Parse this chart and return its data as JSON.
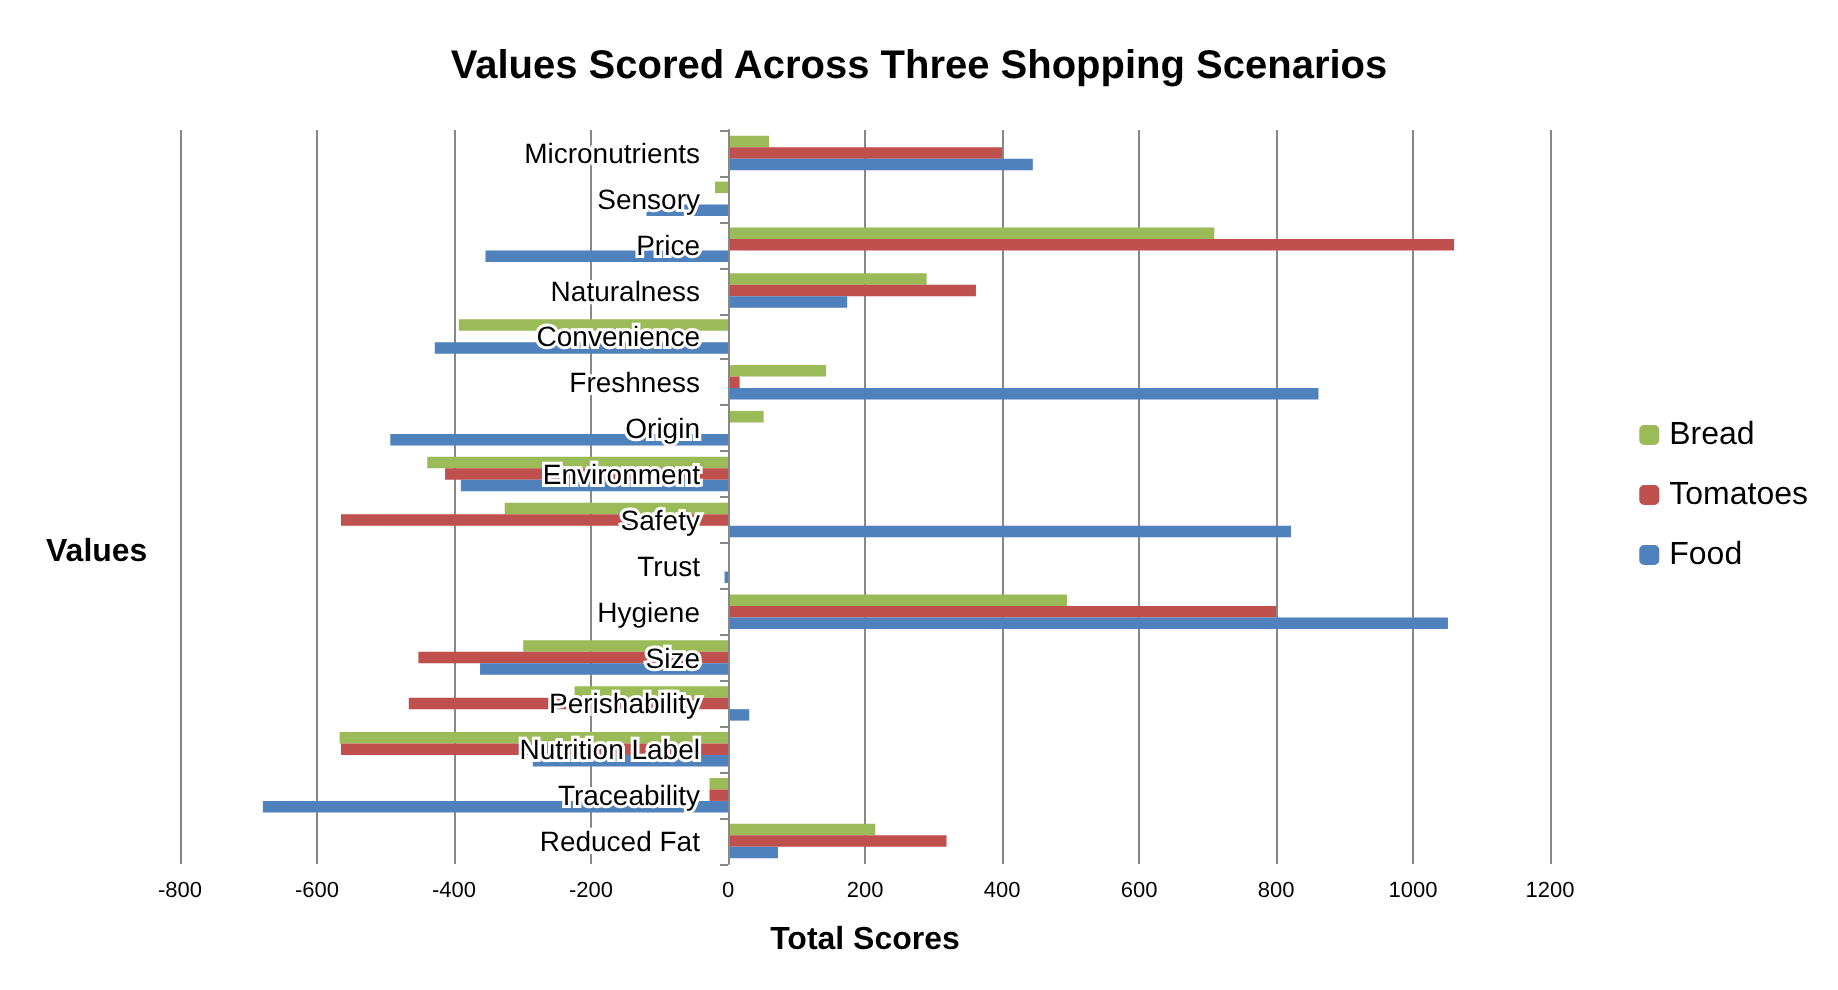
{
  "chart_data": {
    "type": "bar",
    "orientation": "horizontal",
    "title": "Values Scored Across Three Shopping Scenarios",
    "xlabel": "Total Scores",
    "ylabel": "Values",
    "categories": [
      "Micronutrients",
      "Sensory",
      "Price",
      "Naturalness",
      "Convenience",
      "Freshness",
      "Origin",
      "Environment",
      "Safety",
      "Trust",
      "Hygiene",
      "Size",
      "Perishability",
      "Nutrition Label",
      "Traceability",
      "Reduced Fat"
    ],
    "series": [
      {
        "name": "Bread",
        "color": "#9bbb59",
        "values": [
          60,
          -19,
          710,
          290,
          -393,
          143,
          52,
          -439,
          -326,
          0,
          495,
          -299,
          -224,
          -567,
          -27,
          215
        ]
      },
      {
        "name": "Tomatoes",
        "color": "#c0504d",
        "values": [
          400,
          null,
          1060,
          362,
          null,
          17,
          null,
          -413,
          -565,
          0,
          800,
          -452,
          -466,
          -565,
          -27,
          319
        ]
      },
      {
        "name": "Food",
        "color": "#4f81bd",
        "values": [
          445,
          -119,
          -354,
          174,
          -428,
          862,
          -493,
          -390,
          822,
          -5,
          1051,
          -362,
          31,
          -285,
          -679,
          73
        ]
      }
    ],
    "xlim": [
      -800,
      1200
    ],
    "xticks": [
      -800,
      -600,
      -400,
      -200,
      0,
      200,
      400,
      600,
      800,
      1000,
      1200
    ],
    "grid": "x",
    "legend": "right"
  }
}
